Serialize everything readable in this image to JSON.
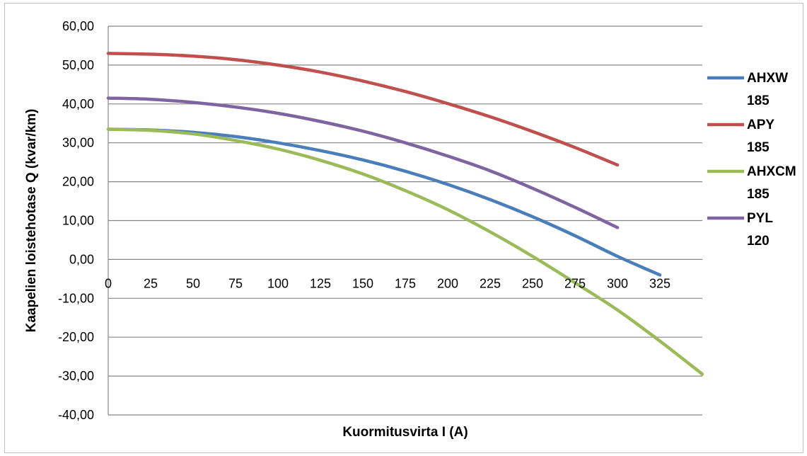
{
  "chart_data": {
    "type": "line",
    "title": "",
    "xlabel": "Kuormitusvirta I (A)",
    "ylabel": "Kaapelien loistehotase Q (kvar/km)",
    "xlim": [
      0,
      350
    ],
    "ylim": [
      -40,
      60
    ],
    "x_ticks": [
      "0",
      "25",
      "50",
      "75",
      "100",
      "125",
      "150",
      "175",
      "200",
      "225",
      "250",
      "275",
      "300",
      "325"
    ],
    "y_ticks": [
      "60,00",
      "50,00",
      "40,00",
      "30,00",
      "20,00",
      "10,00",
      "0,00",
      "-10,00",
      "-20,00",
      "-30,00",
      "-40,00"
    ],
    "grid": "horizontal",
    "legend_position": "right",
    "series": [
      {
        "name": "AHXW 185",
        "legend_lines": [
          "AHXW",
          "185"
        ],
        "color": "#4a7ebb",
        "points": [
          [
            0,
            33.5
          ],
          [
            25,
            33.3
          ],
          [
            50,
            32.7
          ],
          [
            75,
            31.6
          ],
          [
            100,
            30.0
          ],
          [
            125,
            28.0
          ],
          [
            150,
            25.6
          ],
          [
            175,
            22.7
          ],
          [
            200,
            19.3
          ],
          [
            225,
            15.4
          ],
          [
            250,
            11.0
          ],
          [
            275,
            6.1
          ],
          [
            300,
            0.8
          ],
          [
            325,
            -4.0
          ]
        ]
      },
      {
        "name": "APY 185",
        "legend_lines": [
          "APY",
          "185"
        ],
        "color": "#c0504d",
        "points": [
          [
            0,
            53.0
          ],
          [
            25,
            52.8
          ],
          [
            50,
            52.3
          ],
          [
            75,
            51.4
          ],
          [
            100,
            50.0
          ],
          [
            125,
            48.2
          ],
          [
            150,
            45.9
          ],
          [
            175,
            43.2
          ],
          [
            200,
            40.1
          ],
          [
            225,
            36.7
          ],
          [
            250,
            32.9
          ],
          [
            275,
            28.8
          ],
          [
            300,
            24.3
          ]
        ]
      },
      {
        "name": "AHXCM 185",
        "legend_lines": [
          "AHXCM",
          "185"
        ],
        "color": "#9bbb59",
        "points": [
          [
            0,
            33.5
          ],
          [
            25,
            33.2
          ],
          [
            50,
            32.3
          ],
          [
            75,
            30.6
          ],
          [
            100,
            28.4
          ],
          [
            125,
            25.5
          ],
          [
            150,
            22.0
          ],
          [
            175,
            17.7
          ],
          [
            200,
            12.8
          ],
          [
            225,
            7.1
          ],
          [
            250,
            0.8
          ],
          [
            275,
            -6.0
          ],
          [
            300,
            -13.0
          ],
          [
            325,
            -21.0
          ],
          [
            350,
            -29.5
          ]
        ]
      },
      {
        "name": "PYL 120",
        "legend_lines": [
          "PYL",
          "120"
        ],
        "color": "#8064a2",
        "points": [
          [
            0,
            41.5
          ],
          [
            25,
            41.2
          ],
          [
            50,
            40.4
          ],
          [
            75,
            39.2
          ],
          [
            100,
            37.6
          ],
          [
            125,
            35.5
          ],
          [
            150,
            33.0
          ],
          [
            175,
            30.0
          ],
          [
            200,
            26.6
          ],
          [
            225,
            22.8
          ],
          [
            250,
            18.3
          ],
          [
            275,
            13.4
          ],
          [
            300,
            8.2
          ]
        ]
      }
    ]
  }
}
